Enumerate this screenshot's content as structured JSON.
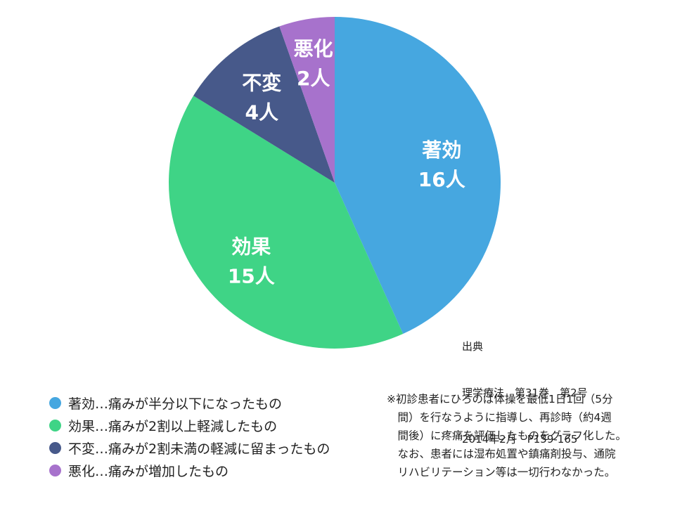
{
  "chart_data": {
    "type": "pie",
    "slices": [
      {
        "label": "著効",
        "value": 16,
        "value_label": "16人",
        "color": "#46A7E0"
      },
      {
        "label": "効果",
        "value": 15,
        "value_label": "15人",
        "color": "#3FD486"
      },
      {
        "label": "不変",
        "value": 4,
        "value_label": "4人",
        "color": "#47598A"
      },
      {
        "label": "悪化",
        "value": 2,
        "value_label": "2人",
        "color": "#A772CC"
      }
    ],
    "legend": [
      {
        "text": "著効…痛みが半分以下になったもの",
        "color": "#46A7E0"
      },
      {
        "text": "効果…痛みが2割以上軽減したもの",
        "color": "#3FD486"
      },
      {
        "text": "不変…痛みが2割未満の軽減に留まったもの",
        "color": "#47598A"
      },
      {
        "text": "悪化…痛みが増加したもの",
        "color": "#A772CC"
      }
    ]
  },
  "source": [
    "出典",
    "理学療法　第31巻　第2号",
    "2014年2月　P159-165"
  ],
  "note": [
    "※初診患者にひろのば体操を最低1日1回（5分",
    "　間）を行なうように指導し、再診時（約4週",
    "　間後）に疼痛を評価したものをグラフ化した。",
    "　なお、患者には湿布処置や鎮痛剤投与、通院",
    "　リハビリテーション等は一切行わなかった。"
  ]
}
